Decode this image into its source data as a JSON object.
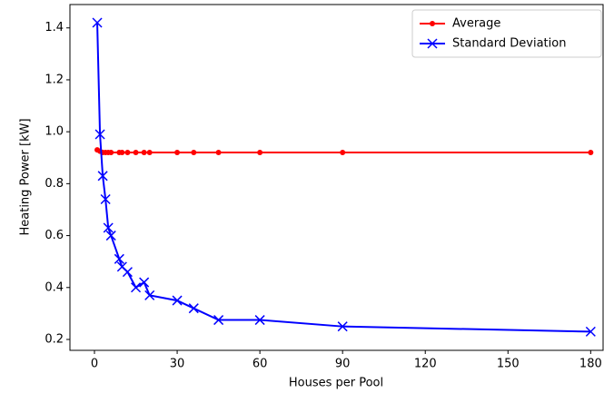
{
  "chart_data": {
    "type": "line",
    "xlabel": "Houses per Pool",
    "ylabel": "Heating Power [kW]",
    "x": [
      1,
      2,
      3,
      4,
      5,
      6,
      9,
      10,
      12,
      15,
      18,
      20,
      30,
      36,
      45,
      60,
      90,
      180
    ],
    "series": [
      {
        "name": "Average",
        "color": "#ff0000",
        "marker": "circle",
        "values": [
          0.93,
          0.925,
          0.92,
          0.92,
          0.92,
          0.92,
          0.92,
          0.92,
          0.92,
          0.92,
          0.92,
          0.92,
          0.92,
          0.92,
          0.92,
          0.92,
          0.92,
          0.92
        ]
      },
      {
        "name": "Standard Deviation",
        "color": "#0000ff",
        "marker": "x",
        "values": [
          1.42,
          0.99,
          0.83,
          0.74,
          0.63,
          0.6,
          0.51,
          0.48,
          0.46,
          0.4,
          0.42,
          0.37,
          0.35,
          0.32,
          0.275,
          0.275,
          0.25,
          0.23
        ]
      }
    ],
    "xlim": [
      -8.9,
      184.5
    ],
    "xticks": [
      0,
      30,
      60,
      90,
      120,
      150,
      180
    ],
    "ylim": [
      0.158,
      1.49
    ],
    "yticks": [
      0.2,
      0.4,
      0.6,
      0.8,
      {
        "value": 1,
        "label": "1.0"
      },
      1.2,
      1.4
    ],
    "legend": "upper right"
  }
}
